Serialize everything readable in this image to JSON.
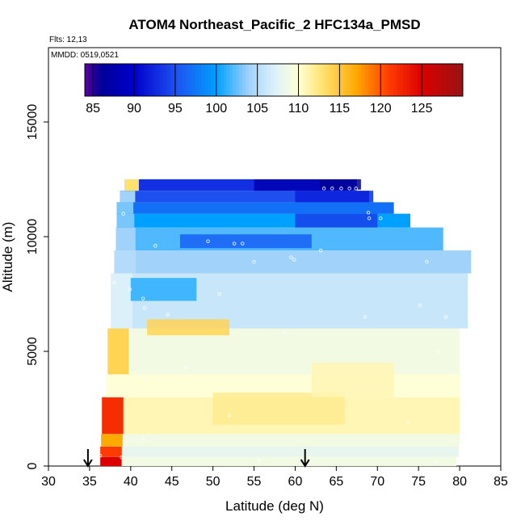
{
  "chart_data": {
    "type": "heatmap",
    "title": "ATOM4 Northeast_Pacific_2 HFC134a_PMSD",
    "flights_label": "Flts: 12,13",
    "dates_label": "MMDD: 0519,0521",
    "xlabel": "Latitude (deg N)",
    "ylabel": "Altitude (m)",
    "xlim": [
      30,
      85
    ],
    "ylim": [
      0,
      17500
    ],
    "x_ticks": [
      "30",
      "35",
      "40",
      "45",
      "50",
      "55",
      "60",
      "65",
      "70",
      "75",
      "80",
      "85"
    ],
    "y_ticks": [
      "0",
      "5000",
      "10000",
      "15000"
    ],
    "colorbar": {
      "range": [
        84,
        130
      ],
      "tick_values": [
        85,
        90,
        95,
        100,
        105,
        110,
        115,
        120,
        125
      ],
      "tick_labels": [
        "85",
        "90",
        "95",
        "100",
        "105",
        "110",
        "115",
        "120",
        "125"
      ]
    },
    "arrow_latitudes": [
      34.8,
      61.2
    ],
    "curtain_rows": [
      {
        "z0": 0,
        "z1": 400,
        "lat0": 36.3,
        "lat1": 79.6,
        "edge_value": 125,
        "value": 109
      },
      {
        "z0": 400,
        "z1": 850,
        "lat0": 36.3,
        "lat1": 79.9,
        "edge_value": 121,
        "value": 108
      },
      {
        "z0": 850,
        "z1": 1400,
        "lat0": 36.4,
        "lat1": 80.0,
        "edge_value": 117,
        "value": 109
      },
      {
        "z0": 1400,
        "z1": 3000,
        "lat0": 36.5,
        "lat1": 80.0,
        "edge_value": 122,
        "value": 111
      },
      {
        "z0": 3000,
        "z1": 4000,
        "lat0": 37.0,
        "lat1": 80.0,
        "edge_value": 110,
        "value": 110
      },
      {
        "z0": 4000,
        "z1": 6000,
        "lat0": 37.2,
        "lat1": 80.0,
        "edge_value": 114,
        "value": 109
      },
      {
        "z0": 6000,
        "z1": 8400,
        "lat0": 37.6,
        "lat1": 81.0,
        "edge_value": 107,
        "value": 106
      },
      {
        "z0": 8400,
        "z1": 9400,
        "lat0": 38.0,
        "lat1": 81.4,
        "edge_value": 105,
        "value": 104
      },
      {
        "z0": 9400,
        "z1": 10400,
        "lat0": 38.2,
        "lat1": 78.0,
        "edge_value": 104,
        "value": 102
      },
      {
        "z0": 10400,
        "z1": 11000,
        "lat0": 38.3,
        "lat1": 74.0,
        "edge_value": 103,
        "value": 100
      },
      {
        "z0": 11000,
        "z1": 11500,
        "lat0": 38.3,
        "lat1": 72.0,
        "edge_value": 103,
        "value": 97
      },
      {
        "z0": 11500,
        "z1": 12000,
        "lat0": 38.7,
        "lat1": 69.5,
        "edge_value": 104,
        "value": 95
      },
      {
        "z0": 12000,
        "z1": 12500,
        "lat0": 39.3,
        "lat1": 67.5,
        "edge_value": 113,
        "value": 93
      }
    ],
    "features": [
      {
        "lat0": 42,
        "lat1": 52,
        "z0": 5700,
        "z1": 6400,
        "value": 114
      },
      {
        "lat0": 50,
        "lat1": 66,
        "z0": 1800,
        "z1": 3200,
        "value": 112
      },
      {
        "lat0": 62,
        "lat1": 72,
        "z0": 3000,
        "z1": 4500,
        "value": 111
      },
      {
        "lat0": 40,
        "lat1": 48,
        "z0": 7200,
        "z1": 8200,
        "value": 101
      },
      {
        "lat0": 46,
        "lat1": 62,
        "z0": 9500,
        "z1": 10100,
        "value": 96
      },
      {
        "lat0": 55,
        "lat1": 67,
        "z0": 12000,
        "z1": 12500,
        "value": 88
      },
      {
        "lat0": 60,
        "lat1": 69,
        "z0": 11500,
        "z1": 12000,
        "value": 92
      },
      {
        "lat0": 60,
        "lat1": 70,
        "z0": 10400,
        "z1": 11000,
        "value": 94
      },
      {
        "lat0": 63,
        "lat1": 68,
        "z0": 12050,
        "z1": 12500,
        "value": 86
      }
    ],
    "sample_points": [
      {
        "lat": 63.5,
        "z": 12100
      },
      {
        "lat": 64.5,
        "z": 12100
      },
      {
        "lat": 65.6,
        "z": 12100
      },
      {
        "lat": 66.6,
        "z": 12100
      },
      {
        "lat": 67.4,
        "z": 12100
      },
      {
        "lat": 68.9,
        "z": 11050
      },
      {
        "lat": 69.0,
        "z": 10800
      },
      {
        "lat": 70.4,
        "z": 10800
      },
      {
        "lat": 39.1,
        "z": 11000
      },
      {
        "lat": 49.4,
        "z": 9800
      },
      {
        "lat": 52.6,
        "z": 9700
      },
      {
        "lat": 53.6,
        "z": 9700
      },
      {
        "lat": 59.5,
        "z": 9100
      },
      {
        "lat": 59.9,
        "z": 9000
      },
      {
        "lat": 63.1,
        "z": 9400
      },
      {
        "lat": 55.0,
        "z": 8900
      },
      {
        "lat": 43.0,
        "z": 9600
      },
      {
        "lat": 76.0,
        "z": 8900
      },
      {
        "lat": 38.0,
        "z": 8000
      },
      {
        "lat": 50.8,
        "z": 7500
      },
      {
        "lat": 39.9,
        "z": 7700
      },
      {
        "lat": 41.5,
        "z": 7300
      },
      {
        "lat": 41.7,
        "z": 6900
      },
      {
        "lat": 44.5,
        "z": 6600
      },
      {
        "lat": 68.5,
        "z": 6500
      },
      {
        "lat": 75.2,
        "z": 7000
      },
      {
        "lat": 78.3,
        "z": 6500
      },
      {
        "lat": 41.8,
        "z": 3800
      },
      {
        "lat": 58.7,
        "z": 5800
      },
      {
        "lat": 77.4,
        "z": 5000
      },
      {
        "lat": 73.8,
        "z": 1900
      },
      {
        "lat": 41.6,
        "z": 1200
      },
      {
        "lat": 36.3,
        "z": 450
      },
      {
        "lat": 38.9,
        "z": 380
      },
      {
        "lat": 55.6,
        "z": 230
      },
      {
        "lat": 77.2,
        "z": 200
      },
      {
        "lat": 52.0,
        "z": 2200
      },
      {
        "lat": 46.8,
        "z": 4300
      }
    ]
  }
}
